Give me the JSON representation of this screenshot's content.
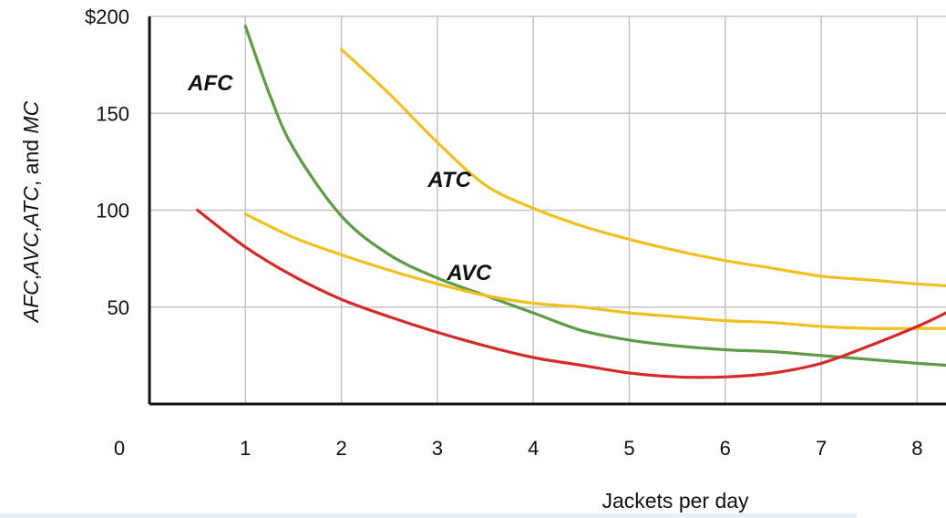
{
  "chart_data": {
    "type": "line",
    "xlabel": "Jackets per day",
    "ylabel_parts": [
      {
        "text": "AFC",
        "italic": true
      },
      {
        "text": ",",
        "italic": false
      },
      {
        "text": "AVC",
        "italic": true
      },
      {
        "text": ",",
        "italic": false
      },
      {
        "text": "ATC",
        "italic": true
      },
      {
        "text": ", and ",
        "italic": false
      },
      {
        "text": "MC",
        "italic": true
      }
    ],
    "xlim": [
      0,
      8.3
    ],
    "ylim": [
      0,
      200
    ],
    "x_ticks": [
      {
        "value": 0,
        "label": "0"
      },
      {
        "value": 1,
        "label": "1"
      },
      {
        "value": 2,
        "label": "2"
      },
      {
        "value": 3,
        "label": "3"
      },
      {
        "value": 4,
        "label": "4"
      },
      {
        "value": 5,
        "label": "5"
      },
      {
        "value": 6,
        "label": "6"
      },
      {
        "value": 7,
        "label": "7"
      },
      {
        "value": 8,
        "label": "8"
      }
    ],
    "y_ticks": [
      {
        "value": 50,
        "label": "50"
      },
      {
        "value": 100,
        "label": "100"
      },
      {
        "value": 150,
        "label": "150"
      },
      {
        "value": 200,
        "label": "$200"
      }
    ],
    "grid": true,
    "series": [
      {
        "name": "AFC",
        "color": "#5e9a48",
        "label_at": [
          0.4,
          162
        ],
        "points": [
          [
            1,
            195
          ],
          [
            1.25,
            160
          ],
          [
            1.5,
            132
          ],
          [
            2,
            97
          ],
          [
            2.5,
            77
          ],
          [
            3,
            65
          ],
          [
            3.5,
            56
          ],
          [
            4,
            47
          ],
          [
            4.5,
            38
          ],
          [
            5,
            33
          ],
          [
            5.5,
            30
          ],
          [
            6,
            28
          ],
          [
            6.5,
            27
          ],
          [
            7,
            25
          ],
          [
            7.5,
            23
          ],
          [
            8,
            21
          ],
          [
            8.3,
            20
          ]
        ]
      },
      {
        "name": "ATC",
        "color": "#f0c020",
        "label_at": [
          2.9,
          112
        ],
        "points": [
          [
            2,
            183
          ],
          [
            2.5,
            160
          ],
          [
            3,
            135
          ],
          [
            3.5,
            113
          ],
          [
            4,
            101
          ],
          [
            4.5,
            92
          ],
          [
            5,
            85
          ],
          [
            5.5,
            79
          ],
          [
            6,
            74
          ],
          [
            6.5,
            70
          ],
          [
            7,
            66
          ],
          [
            7.5,
            64
          ],
          [
            8,
            62
          ],
          [
            8.3,
            61
          ]
        ]
      },
      {
        "name": "AVC",
        "color": "#f0c020",
        "label_at": [
          3.1,
          64
        ],
        "points": [
          [
            1,
            98
          ],
          [
            1.5,
            86
          ],
          [
            2,
            77
          ],
          [
            2.5,
            69
          ],
          [
            3,
            62
          ],
          [
            3.5,
            56
          ],
          [
            4,
            52
          ],
          [
            4.5,
            50
          ],
          [
            5,
            47
          ],
          [
            5.5,
            45
          ],
          [
            6,
            43
          ],
          [
            6.5,
            42
          ],
          [
            7,
            40
          ],
          [
            7.5,
            39
          ],
          [
            8,
            39
          ],
          [
            8.3,
            39
          ]
        ]
      },
      {
        "name": "MC",
        "color": "#d42a2a",
        "label_at": null,
        "points": [
          [
            0.5,
            100
          ],
          [
            1,
            81
          ],
          [
            1.5,
            66
          ],
          [
            2,
            54
          ],
          [
            2.5,
            45
          ],
          [
            3,
            37
          ],
          [
            3.5,
            30
          ],
          [
            4,
            24
          ],
          [
            4.5,
            20
          ],
          [
            5,
            16
          ],
          [
            5.5,
            14
          ],
          [
            6,
            14
          ],
          [
            6.5,
            16
          ],
          [
            7,
            21
          ],
          [
            7.5,
            30
          ],
          [
            8,
            40
          ],
          [
            8.3,
            47
          ]
        ]
      }
    ]
  }
}
